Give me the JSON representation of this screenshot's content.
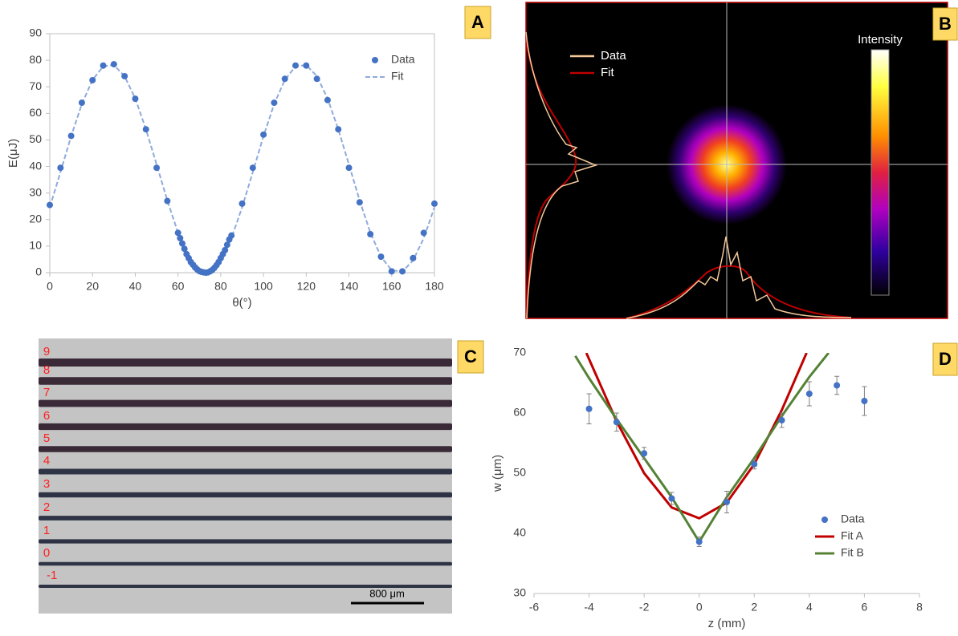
{
  "chart_data": [
    {
      "type": "scatter",
      "label": "A",
      "x_label": "θ(°)",
      "y_label": "E(μJ)",
      "xlim": [
        0,
        180
      ],
      "ylim": [
        0,
        90
      ],
      "xticks": [
        0,
        20,
        40,
        60,
        80,
        100,
        120,
        140,
        160,
        180
      ],
      "yticks": [
        0,
        10,
        20,
        30,
        40,
        50,
        60,
        70,
        80,
        90
      ],
      "frame": true,
      "legend": "upper right",
      "series": [
        {
          "name": "Data",
          "color": "#4472c4",
          "style": "marker",
          "x": [
            0,
            5,
            10,
            15,
            20,
            25,
            30,
            35,
            40,
            45,
            50,
            55,
            60,
            61,
            62,
            63,
            64,
            65,
            66,
            67,
            68,
            69,
            70,
            71,
            72,
            73,
            74,
            75,
            76,
            77,
            78,
            79,
            80,
            81,
            82,
            83,
            84,
            85,
            90,
            95,
            100,
            105,
            110,
            115,
            120,
            125,
            130,
            135,
            140,
            145,
            150,
            155,
            160,
            165,
            170,
            175,
            180
          ],
          "values": [
            25.5,
            39.5,
            51.5,
            64,
            72.5,
            78,
            78.5,
            74,
            65.5,
            54,
            39.5,
            27,
            15,
            13,
            11,
            9,
            7,
            5.5,
            4,
            3,
            2,
            1.2,
            0.6,
            0.3,
            0.1,
            0,
            0.1,
            0.5,
            1,
            1.8,
            2.8,
            4,
            5.5,
            7,
            8.5,
            10.5,
            12.5,
            14,
            26,
            39.5,
            52,
            64,
            73,
            78,
            78,
            73,
            65,
            54,
            39.5,
            26.5,
            14.5,
            6,
            0.5,
            0.5,
            5.5,
            15,
            26
          ]
        },
        {
          "name": "Fit",
          "color": "#8faadc",
          "style": "dashed",
          "x": [
            0,
            5,
            10,
            15,
            20,
            25,
            30,
            35,
            40,
            45,
            50,
            55,
            60,
            65,
            70,
            75,
            80,
            85,
            90,
            95,
            100,
            105,
            110,
            115,
            120,
            125,
            130,
            135,
            140,
            145,
            150,
            155,
            160,
            165,
            170,
            175,
            180
          ],
          "values": [
            24.6,
            37.9,
            51.4,
            63.5,
            72.6,
            77.7,
            78.2,
            74.0,
            65.6,
            54.0,
            40.7,
            27.2,
            15.1,
            6.0,
            0.9,
            0.4,
            4.6,
            13.0,
            24.6,
            37.9,
            51.4,
            63.5,
            72.6,
            77.7,
            78.2,
            74.0,
            65.6,
            54.0,
            40.7,
            27.2,
            15.1,
            6.0,
            0.9,
            0.4,
            4.6,
            13.0,
            24.6
          ]
        }
      ]
    },
    {
      "type": "scatter",
      "label": "D",
      "x_label": "z (mm)",
      "y_label": "w (μm)",
      "xlim": [
        -6,
        8
      ],
      "ylim": [
        30,
        70
      ],
      "xticks": [
        -6,
        -4,
        -2,
        0,
        2,
        4,
        6,
        8
      ],
      "yticks": [
        30,
        40,
        50,
        60,
        70
      ],
      "frame": false,
      "legend": "lower right",
      "series": [
        {
          "name": "Data",
          "color": "#4472c4",
          "style": "marker",
          "x": [
            -4,
            -3,
            -2,
            -1,
            0,
            1,
            2,
            3,
            4,
            5,
            6
          ],
          "values": [
            60.7,
            58.5,
            53.3,
            45.8,
            38.6,
            45.2,
            51.5,
            58.8,
            63.2,
            64.6,
            62
          ],
          "errors": [
            2.5,
            1.5,
            1,
            1,
            0.8,
            1.8,
            0.8,
            1.2,
            2,
            1.5,
            2.4
          ]
        },
        {
          "name": "Fit A",
          "color": "#c00000",
          "style": "solid",
          "x": [
            -4.1,
            -3,
            -2,
            -1,
            0,
            1,
            2,
            3,
            3.9
          ],
          "values": [
            70,
            58.6,
            50,
            44.3,
            42.5,
            45.1,
            51.5,
            60.5,
            70
          ]
        },
        {
          "name": "Fit B",
          "color": "#548235",
          "style": "solid",
          "x": [
            -4.5,
            -4,
            -3,
            -2,
            -1,
            -0.5,
            0,
            0.5,
            1,
            2,
            3,
            4,
            4.7
          ],
          "values": [
            69.5,
            65.8,
            59,
            52.5,
            46,
            42.3,
            38.6,
            42.3,
            46,
            52.5,
            59.5,
            66,
            70
          ]
        }
      ]
    }
  ],
  "beam_profile": {
    "label": "B",
    "legend": [
      "Data",
      "Fit"
    ],
    "colorbar_label": "Intensity"
  },
  "micrograph": {
    "label": "C",
    "row_labels": [
      "9",
      "8",
      "7",
      "6",
      "5",
      "4",
      "3",
      "2",
      "1",
      "0",
      "-1"
    ],
    "scale_bar": "800 μm"
  }
}
